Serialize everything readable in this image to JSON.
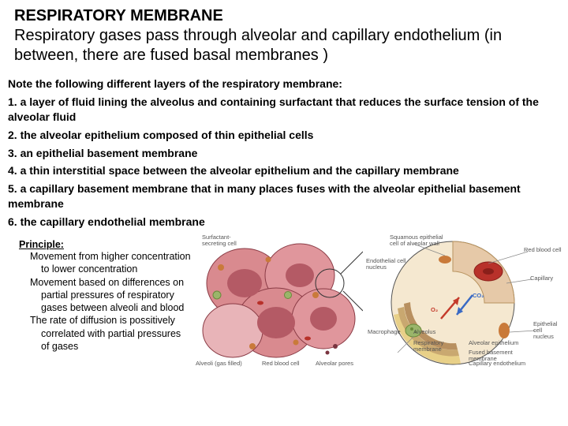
{
  "header": {
    "title": "RESPIRATORY MEMBRANE",
    "subtitle": "Respiratory gases pass through alveolar and capillary endothelium (in between, there are fused basal membranes )"
  },
  "notes": {
    "intro": "Note the following different layers of the respiratory membrane:",
    "items": [
      "1. a layer of fluid lining the alveolus and containing surfactant that reduces the surface tension of the alveolar fluid",
      "2. the alveolar epithelium composed of thin epithelial cells",
      "3. an epithelial basement membrane",
      "4. a thin interstitial space between the alveolar epithelium and the capillary membrane",
      "5. a capillary basement membrane that in many places fuses with the alveolar epithelial basement membrane",
      "6. the capillary endothelial membrane"
    ]
  },
  "principle": {
    "heading": "Principle:",
    "lines": [
      "Movement from higher concentration to lower concentration",
      "Movement based on differences on partial pressures of respiratory gases between alveoli and blood",
      "The rate of diffusion is possitively correlated with partial pressures of gases"
    ]
  },
  "diagram": {
    "left_labels": {
      "surfactant": "Surfactant-\nsecreting cell",
      "alveoli": "Alveoli (gas filled)",
      "rbc": "Red blood cell",
      "pores": "Alveolar pores"
    },
    "right_labels": {
      "squamous": "Squamous epithelial\ncell of alveolar wall",
      "rbc": "Red blood cell",
      "capillary": "Capillary",
      "nucleus": "Endothelial cell\nnucleus",
      "o2": "O₂",
      "co2": "CO₂",
      "macrophage": "Macrophage",
      "alveolus": "Alveolus",
      "resp_mem": "Respiratory\nmembrane",
      "alv_epi": "Alveolar epithelium",
      "fused": "Fused basement\nmembrane",
      "cap_endo": "Capillary endothelium",
      "epi_nucleus": "Epithelial\ncell\nnucleus"
    },
    "colors": {
      "tissue_pink": "#d98a8f",
      "tissue_light": "#e8b4b8",
      "tissue_dark": "#b45a65",
      "cell_border": "#8a3b45",
      "nucleus": "#c97a3a",
      "green_cell": "#9ab56a",
      "green_dark": "#6a8a3a",
      "rbc_red": "#b8312a",
      "rbc_dark": "#8a1f1a",
      "capillary_wall": "#e6c9a8",
      "capillary_border": "#b8935f",
      "alveolus_fill": "#f5e8d0",
      "epithelium_yellow": "#e8d088",
      "membrane_tan": "#c9a870",
      "endothelium_brown": "#b89060",
      "o2_red": "#c43a2a",
      "label_gray": "#666666",
      "leader": "#888888"
    }
  }
}
